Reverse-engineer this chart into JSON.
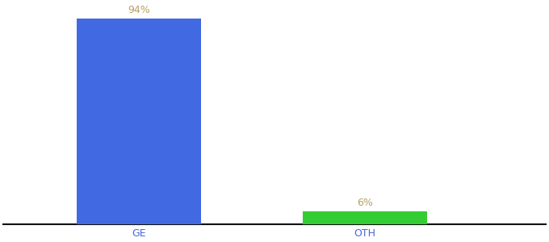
{
  "categories": [
    "GE",
    "OTH"
  ],
  "values": [
    94,
    6
  ],
  "bar_colors": [
    "#4169e1",
    "#33cc33"
  ],
  "bar_labels": [
    "94%",
    "6%"
  ],
  "ylim": [
    0,
    100
  ],
  "background_color": "#ffffff",
  "label_fontsize": 9,
  "tick_fontsize": 9,
  "label_color": "#b8a060",
  "tick_color": "#4169e1",
  "spine_color": "#111111",
  "figsize": [
    6.8,
    3.0
  ],
  "dpi": 100,
  "x_positions": [
    1,
    2
  ],
  "bar_width": 0.55,
  "xlim": [
    0.4,
    2.8
  ]
}
